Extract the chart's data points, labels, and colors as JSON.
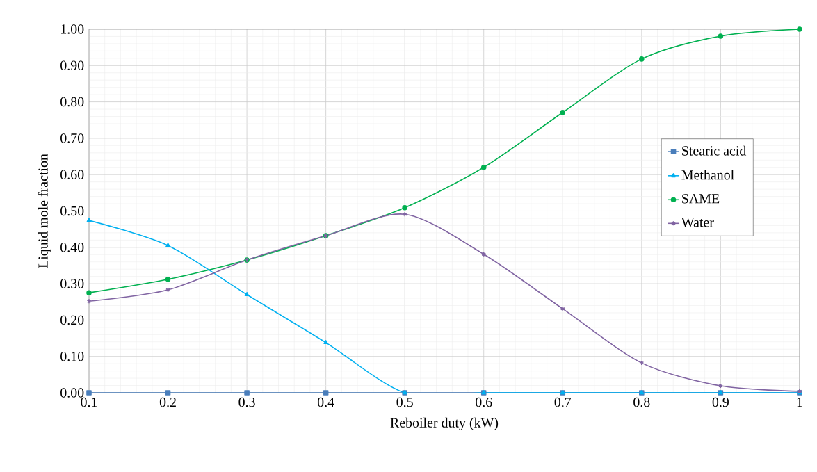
{
  "chart_data": {
    "type": "line",
    "xlabel": "Reboiler duty (kW)",
    "ylabel": "Liquid mole fraction",
    "x": [
      0.1,
      0.2,
      0.3,
      0.4,
      0.5,
      0.6,
      0.7,
      0.8,
      0.9,
      1
    ],
    "series": [
      {
        "name": "Stearic acid",
        "color": "#4a7ebb",
        "marker": "square",
        "values": [
          0,
          0,
          0,
          0,
          0,
          0,
          0,
          0,
          0,
          0
        ]
      },
      {
        "name": "Methanol",
        "color": "#00b0f0",
        "marker": "triangle",
        "values": [
          0.474,
          0.405,
          0.27,
          0.138,
          0,
          0,
          0,
          0,
          0,
          0
        ]
      },
      {
        "name": "SAME",
        "color": "#00b050",
        "marker": "circle",
        "values": [
          0.275,
          0.312,
          0.365,
          0.432,
          0.509,
          0.62,
          0.771,
          0.918,
          0.981,
          1.0
        ]
      },
      {
        "name": "Water",
        "color": "#8064a2",
        "marker": "cross",
        "values": [
          0.252,
          0.283,
          0.365,
          0.432,
          0.491,
          0.381,
          0.231,
          0.082,
          0.019,
          0.004
        ]
      }
    ],
    "xlim": [
      0.1,
      1
    ],
    "ylim": [
      0,
      1
    ],
    "xticks": [
      0.1,
      0.2,
      0.3,
      0.4,
      0.5,
      0.6,
      0.7,
      0.8,
      0.9,
      1
    ],
    "yticks": [
      {
        "value": 0,
        "label": "0.00"
      },
      {
        "value": 0.1,
        "label": "0.10"
      },
      {
        "value": 0.2,
        "label": "0.20"
      },
      {
        "value": 0.3,
        "label": "0.30"
      },
      {
        "value": 0.4,
        "label": "0.40"
      },
      {
        "value": 0.5,
        "label": "0.50"
      },
      {
        "value": 0.6,
        "label": "0.60"
      },
      {
        "value": 0.7,
        "label": "0.70"
      },
      {
        "value": 0.8,
        "label": "0.80"
      },
      {
        "value": 0.9,
        "label": "0.90"
      },
      {
        "value": 1,
        "label": "1.00"
      }
    ],
    "grid": true,
    "legend": "right",
    "line_style": "solid"
  }
}
